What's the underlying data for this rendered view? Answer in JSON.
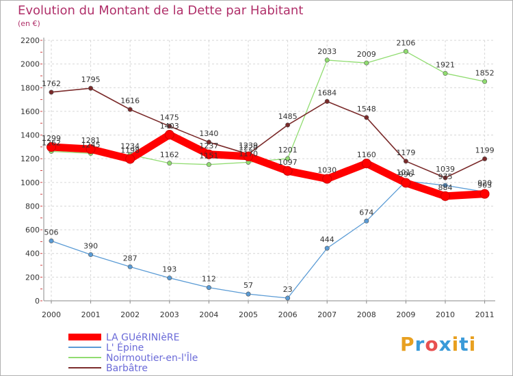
{
  "header": {
    "title": "Evolution du Montant de la Dette par Habitant",
    "subtitle": "(en €)"
  },
  "brand": {
    "letters": [
      "P",
      "r",
      "o",
      "x",
      "i",
      "t",
      "i"
    ],
    "colors": [
      "#e8a020",
      "#3a9ad8",
      "#e85050",
      "#3a9ad8",
      "#e8a020",
      "#3a9ad8",
      "#e8a020"
    ]
  },
  "chart_data": {
    "type": "line",
    "x": [
      "2000",
      "2001",
      "2002",
      "2003",
      "2004",
      "2005",
      "2006",
      "2007",
      "2008",
      "2009",
      "2010",
      "2011"
    ],
    "ylim": [
      0,
      2200
    ],
    "yticks": [
      0,
      200,
      400,
      600,
      800,
      1000,
      1200,
      1400,
      1600,
      1800,
      2000,
      2200
    ],
    "grid": true,
    "legend": "bottom-left",
    "series": [
      {
        "name": "LA GUéRINIèRE",
        "color": "#ff0000",
        "values": [
          1299,
          1281,
          1198,
          1403,
          1237,
          1220,
          1097,
          1030,
          1160,
          996,
          884,
          903
        ],
        "labels": [
          "1299",
          "1281",
          "1198",
          "1403",
          "1237",
          "1220",
          "1097",
          "1030",
          "1160",
          "996",
          "884",
          "903"
        ]
      },
      {
        "name": "L' Épine",
        "color": "#5a9bd5",
        "values": [
          506,
          390,
          287,
          193,
          112,
          57,
          23,
          444,
          674,
          1011,
          975,
          920
        ],
        "labels": [
          "506",
          "390",
          "287",
          "193",
          "112",
          "57",
          "23",
          "444",
          "674",
          "1011",
          "975",
          "920"
        ]
      },
      {
        "name": "Noirmoutier-en-l'Île",
        "color": "#90dc70",
        "values": [
          1262,
          1245,
          1234,
          1162,
          1151,
          1170,
          1201,
          2033,
          2009,
          2106,
          1921,
          1852
        ],
        "labels": [
          "1262",
          "1245",
          "1234",
          "1162",
          "1151",
          "1170",
          "1201",
          "2033",
          "2009",
          "2106",
          "1921",
          "1852"
        ]
      },
      {
        "name": "Barbâtre",
        "color": "#7a2a2a",
        "values": [
          1762,
          1795,
          1616,
          1475,
          1340,
          1239,
          1485,
          1684,
          1548,
          1179,
          1039,
          1199
        ],
        "labels": [
          "1762",
          "1795",
          "1616",
          "1475",
          "1340",
          "1239",
          "1485",
          "1684",
          "1548",
          "1179",
          "1039",
          "1199"
        ]
      }
    ]
  }
}
